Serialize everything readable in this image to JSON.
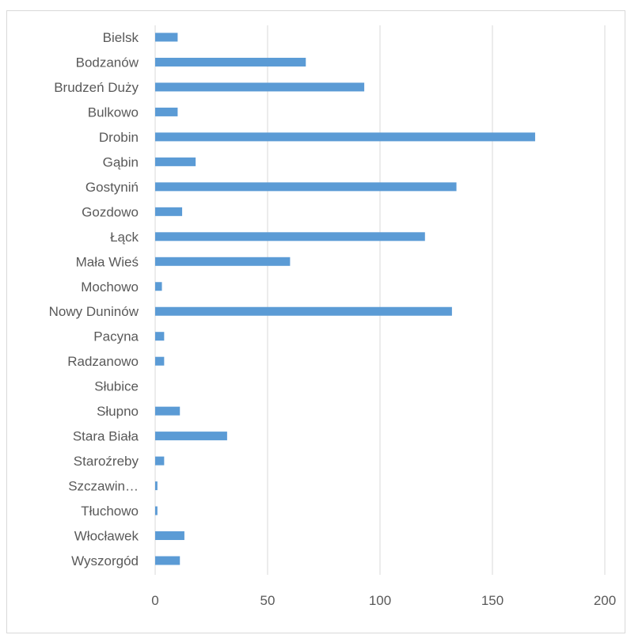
{
  "chart_data": {
    "type": "bar",
    "orientation": "horizontal",
    "categories": [
      "Bielsk",
      "Bodzanów",
      "Brudzeń Duży",
      "Bulkowo",
      "Drobin",
      "Gąbin",
      "Gostyniń",
      "Gozdowo",
      "Łąck",
      "Mała Wieś",
      "Mochowo",
      "Nowy Duninów",
      "Pacyna",
      "Radzanowo",
      "Słubice",
      "Słupno",
      "Stara Biała",
      "Staroźreby",
      "Szczawin…",
      "Tłuchowo",
      "Włocławek",
      "Wyszorgód"
    ],
    "values": [
      10,
      67,
      93,
      10,
      169,
      18,
      134,
      12,
      120,
      60,
      3,
      132,
      4,
      4,
      0,
      11,
      32,
      4,
      1,
      1,
      13,
      11
    ],
    "xlim": [
      0,
      200
    ],
    "xticks": [
      0,
      50,
      100,
      150,
      200
    ],
    "tick_labels": [
      "0",
      "50",
      "100",
      "150",
      "200"
    ],
    "grid": true,
    "bar_color": "#5b9bd5",
    "grid_color": "#d9d9d9",
    "title": "",
    "xlabel": "",
    "ylabel": ""
  }
}
